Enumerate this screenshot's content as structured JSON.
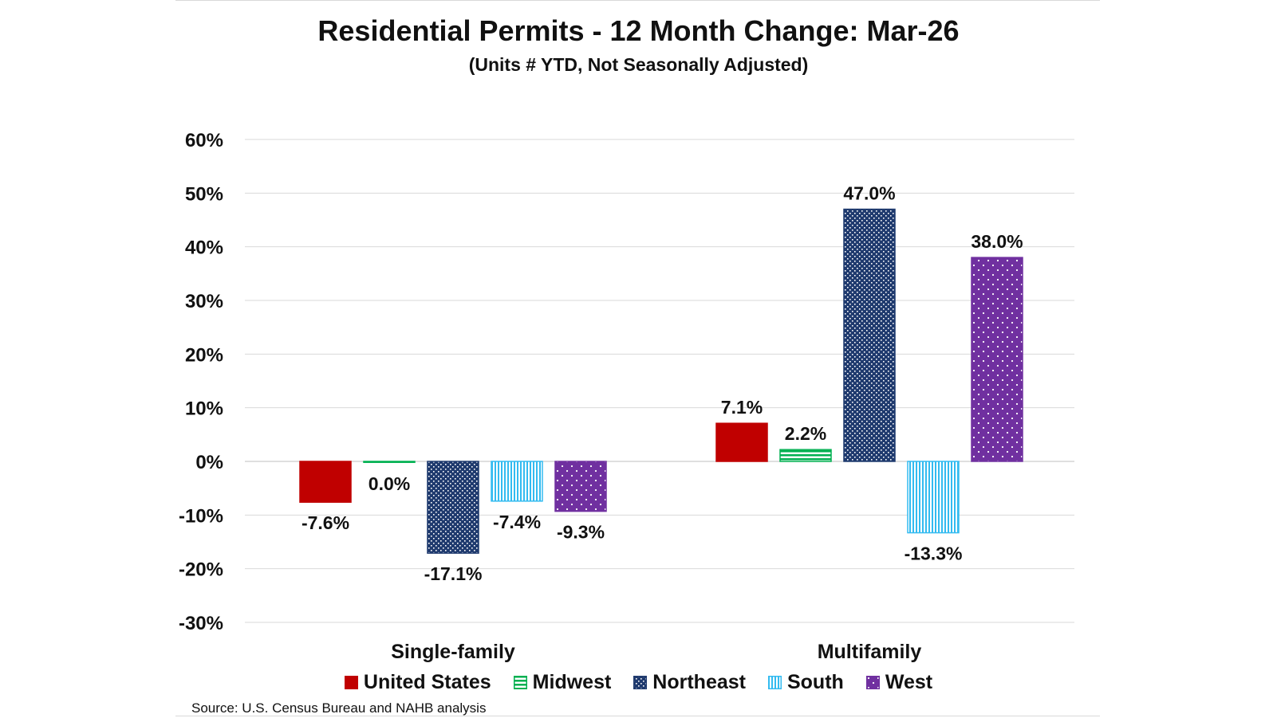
{
  "chart_data": {
    "type": "bar",
    "title": "Residential Permits - 12 Month Change:  Mar-26",
    "subtitle": "(Units # YTD, Not Seasonally Adjusted)",
    "categories": [
      "Single-family",
      "Multifamily"
    ],
    "series": [
      {
        "name": "United States",
        "values": [
          -7.6,
          7.1
        ],
        "labels": [
          "-7.6%",
          "7.1%"
        ],
        "color": "#c00000",
        "pattern": "solid"
      },
      {
        "name": "Midwest",
        "values": [
          0.0,
          2.2
        ],
        "labels": [
          "0.0%",
          "2.2%"
        ],
        "color": "#00b050",
        "pattern": "horizontal-stripes"
      },
      {
        "name": "Northeast",
        "values": [
          -17.1,
          47.0
        ],
        "labels": [
          "-17.1%",
          "47.0%"
        ],
        "color": "#1f3a6e",
        "pattern": "checker"
      },
      {
        "name": "South",
        "values": [
          -7.4,
          -13.3
        ],
        "labels": [
          "-7.4%",
          "-13.3%"
        ],
        "color": "#33bbf0",
        "pattern": "vertical-stripes"
      },
      {
        "name": "West",
        "values": [
          -9.3,
          38.0
        ],
        "labels": [
          "-9.3%",
          "38.0%"
        ],
        "color": "#7030a0",
        "pattern": "dots"
      }
    ],
    "ylim": [
      -30,
      60
    ],
    "yticks": [
      60,
      50,
      40,
      30,
      20,
      10,
      0,
      -10,
      -20,
      -30
    ],
    "ytick_labels": [
      "60%",
      "50%",
      "40%",
      "30%",
      "20%",
      "10%",
      "0%",
      "-10%",
      "-20%",
      "-30%"
    ],
    "grid": true,
    "legend_position": "bottom"
  },
  "source": "Source: U.S. Census Bureau and NAHB analysis"
}
